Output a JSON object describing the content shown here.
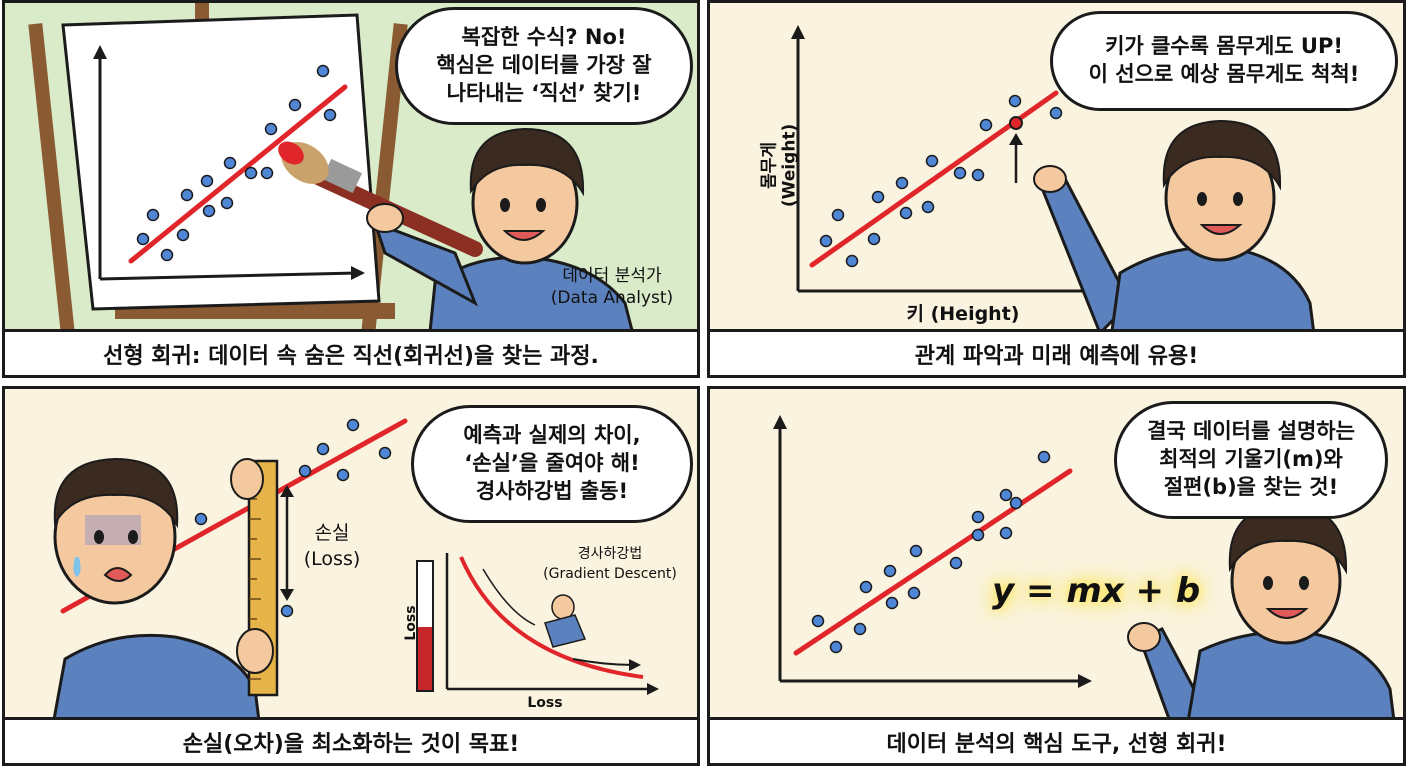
{
  "panels": [
    {
      "speech": [
        "복잡한 수식? No!",
        "핵심은 데이터를 가장 잘",
        "나타내는 ‘직선’ 찾기!"
      ],
      "role": [
        "데이터 분석가",
        "(Data Analyst)"
      ],
      "caption": "선형 회귀: 데이터 속 숨은 직선(회귀선)을 찾는 과정."
    },
    {
      "speech": [
        "키가 클수록 몸무게도 UP!",
        "이 선으로 예상 몸무게도 척척!"
      ],
      "y_label": [
        "몸무게",
        "(Weight)"
      ],
      "x_label": "키 (Height)",
      "caption": "관계 파악과 미래 예측에 유용!"
    },
    {
      "speech": [
        "예측과 실제의 차이,",
        "‘손실’을 줄여야 해!",
        "경사하강법 출동!"
      ],
      "loss_label": [
        "손실",
        "(Loss)"
      ],
      "gd_label": [
        "경사하강법",
        "(Gradient Descent)"
      ],
      "gd_y_label": "Loss",
      "gd_x_label": "Loss",
      "caption": "손실(오차)을 최소화하는 것이 목표!"
    },
    {
      "speech": [
        "결국 데이터를 설명하는",
        "최적의 기울기(m)와",
        "절편(b)을 찾는 것!"
      ],
      "formula": "y = mx + b",
      "caption": "데이터 분석의 핵심 도구, 선형 회귀!"
    }
  ],
  "colors": {
    "panel1_bg": "#d9ebc8",
    "cream_bg": "#faf3df",
    "dot": "#4f86d6",
    "line": "#e0262a",
    "shirt": "#5b82bf",
    "hair": "#3a2a20",
    "skin": "#f5c9a0"
  }
}
